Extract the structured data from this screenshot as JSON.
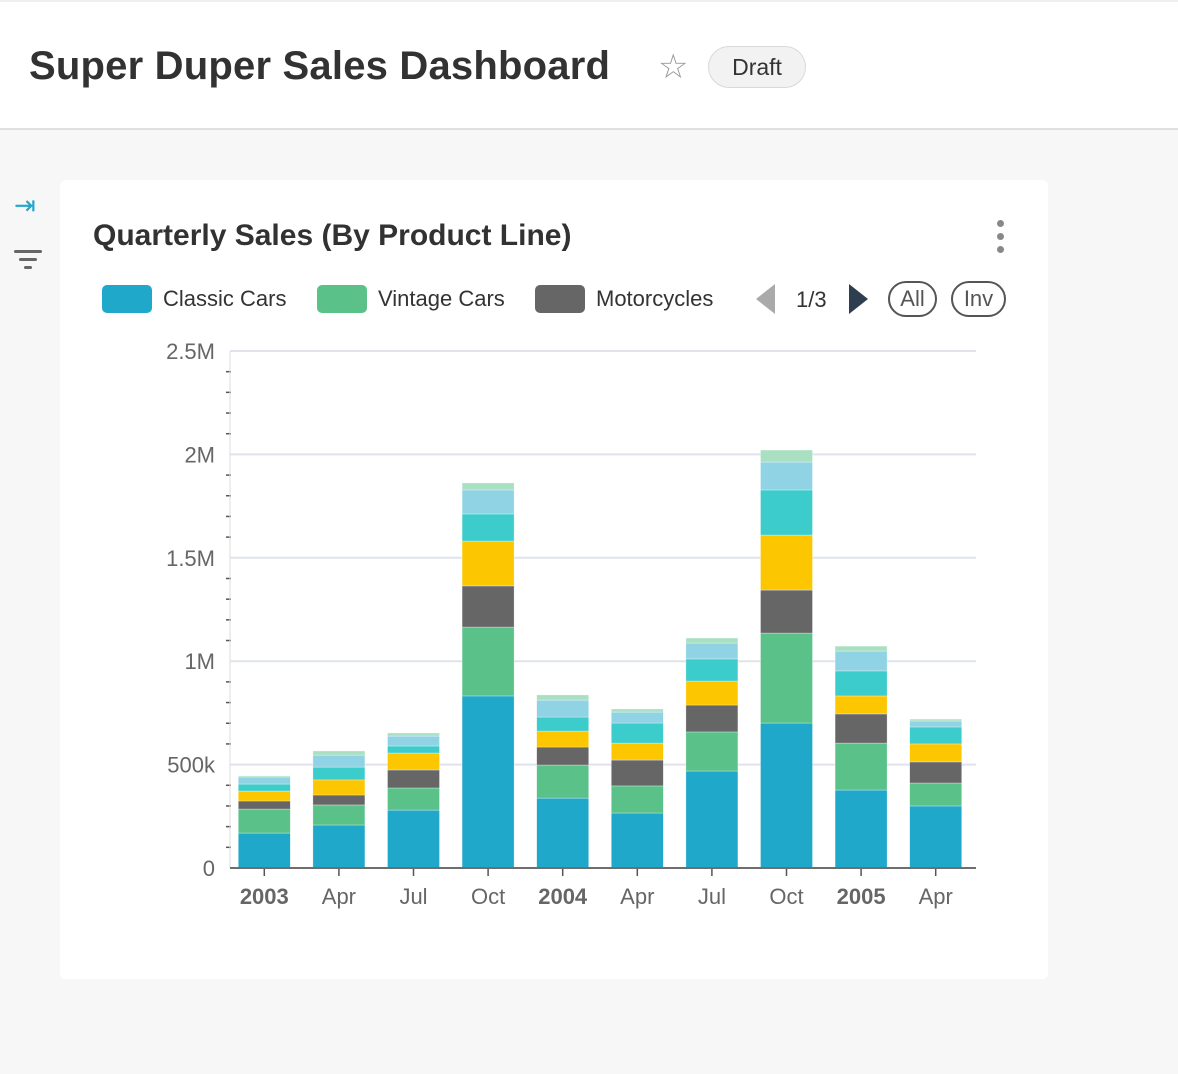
{
  "header": {
    "title": "Super Duper Sales Dashboard",
    "status_badge": "Draft",
    "star_icon": "star-outline-icon"
  },
  "sidebar": {
    "expand_icon": "expand-right-icon",
    "filter_icon": "filter-icon"
  },
  "card": {
    "title": "Quarterly Sales (By Product Line)",
    "menu_icon": "more-vertical-icon"
  },
  "legend": {
    "items": [
      {
        "label": "Classic Cars",
        "color": "#1FA8C9"
      },
      {
        "label": "Vintage Cars",
        "color": "#5AC189"
      },
      {
        "label": "Motorcycles",
        "color": "#666666"
      }
    ],
    "page": "1/3",
    "all_label": "All",
    "inv_label": "Inv"
  },
  "chart_data": {
    "type": "bar",
    "stacked": true,
    "title": "Quarterly Sales (By Product Line)",
    "categories": [
      "2003",
      "Apr",
      "Jul",
      "Oct",
      "2004",
      "Apr",
      "Jul",
      "Oct",
      "2005",
      "Apr"
    ],
    "bold_categories": [
      "2003",
      "2004",
      "2005"
    ],
    "y_ticks": [
      "0",
      "500k",
      "1M",
      "1.5M",
      "2M",
      "2.5M"
    ],
    "ylim": [
      0,
      2500000
    ],
    "grid": true,
    "legend_placement": "top",
    "series": [
      {
        "name": "Classic Cars",
        "color": "#1FA8C9",
        "values": [
          169000,
          208000,
          280000,
          832000,
          338000,
          266000,
          469000,
          701000,
          377000,
          300000
        ]
      },
      {
        "name": "Vintage Cars",
        "color": "#5AC189",
        "values": [
          116000,
          97000,
          107000,
          333000,
          160000,
          131000,
          189000,
          435000,
          227000,
          111000
        ]
      },
      {
        "name": "Motorcycles",
        "color": "#666666",
        "values": [
          39000,
          48000,
          87000,
          199000,
          87000,
          125000,
          130000,
          208000,
          141000,
          102000
        ]
      },
      {
        "color": "#FCC700",
        "values": [
          48000,
          73000,
          82000,
          217000,
          77000,
          82000,
          116000,
          266000,
          87000,
          87000
        ]
      },
      {
        "color": "#3CCCCB",
        "values": [
          34000,
          62000,
          34000,
          131000,
          68000,
          97000,
          107000,
          218000,
          121000,
          82000
        ]
      },
      {
        "color": "#8FD3E4",
        "values": [
          34000,
          58000,
          48000,
          116000,
          82000,
          53000,
          77000,
          135000,
          96000,
          29000
        ]
      },
      {
        "color": "#A9E0C2",
        "values": [
          5000,
          20000,
          15000,
          34000,
          25000,
          15000,
          24000,
          58000,
          24000,
          9000
        ]
      }
    ]
  }
}
